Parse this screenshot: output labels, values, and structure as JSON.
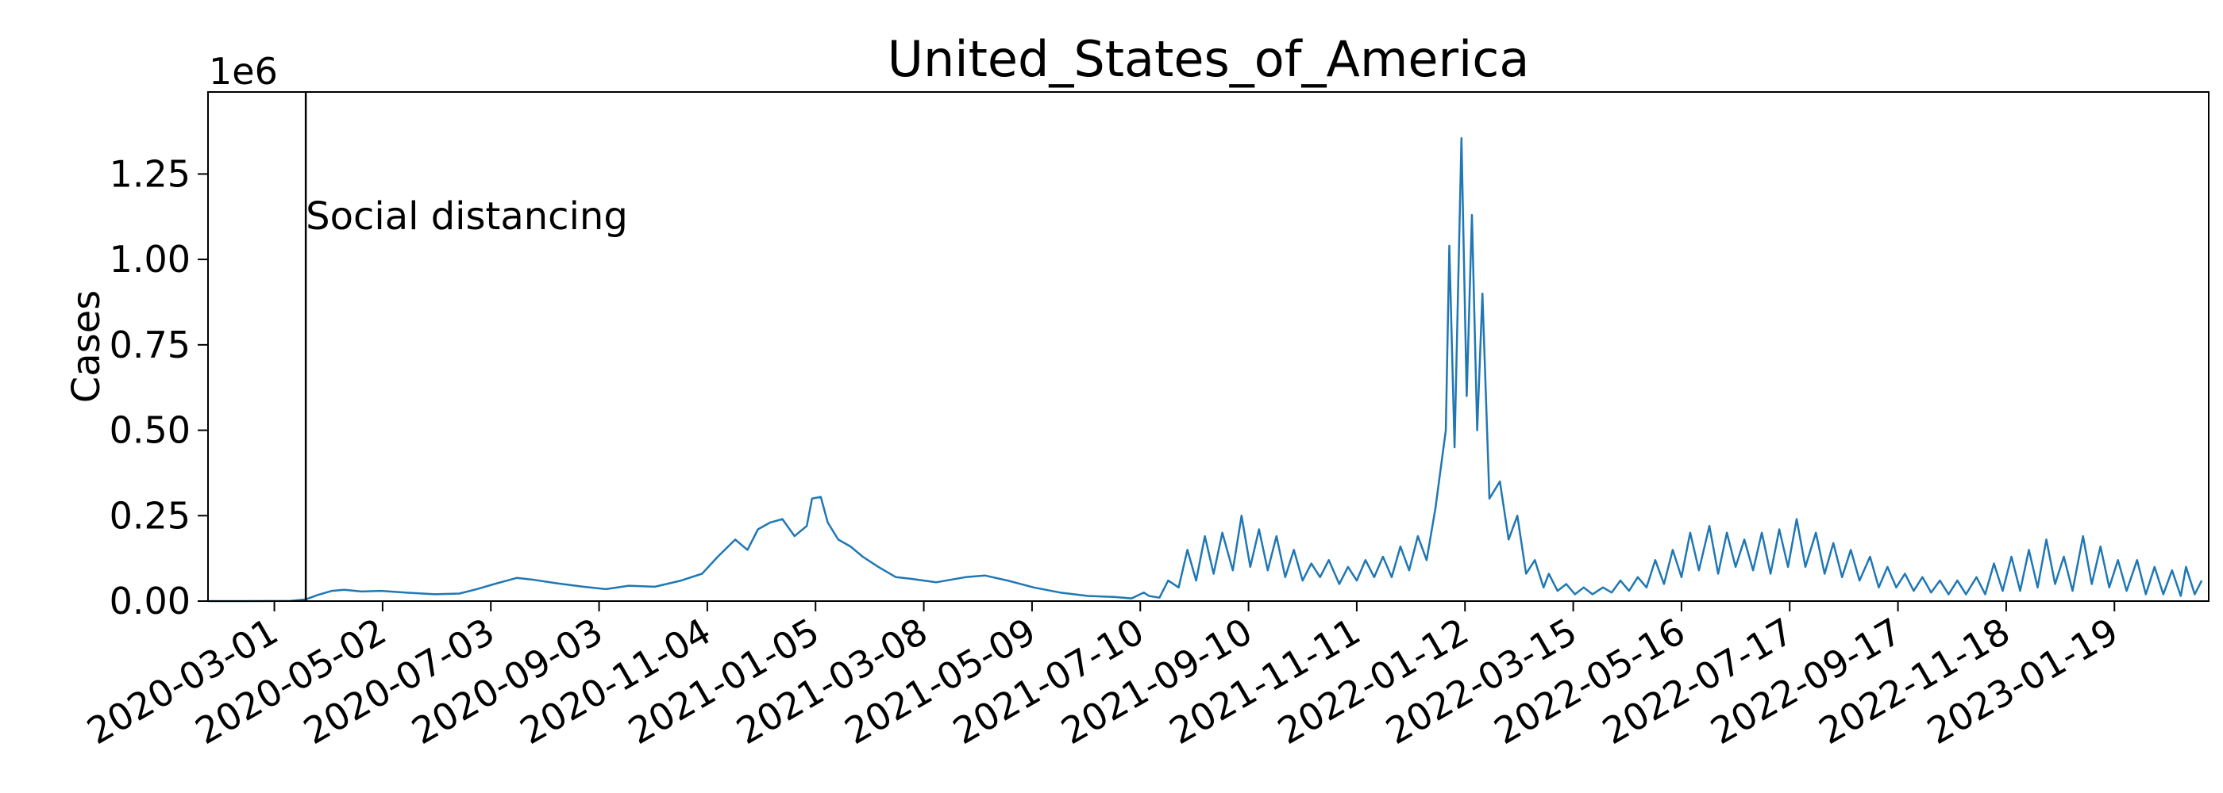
{
  "chart_data": {
    "type": "line",
    "title": "United_States_of_America",
    "y_label": "Cases",
    "y_offset_label": "1e6",
    "color": "#1f77b4",
    "annotation": {
      "x": "2020-03-19",
      "text": "Social distancing"
    },
    "xlim": [
      "2020-01-23",
      "2023-03-14"
    ],
    "xticks": [
      "2020-03-01",
      "2020-05-02",
      "2020-07-03",
      "2020-09-03",
      "2020-11-04",
      "2021-01-05",
      "2021-03-08",
      "2021-05-09",
      "2021-07-10",
      "2021-09-10",
      "2021-11-11",
      "2022-01-12",
      "2022-03-15",
      "2022-05-16",
      "2022-07-17",
      "2022-09-17",
      "2022-11-18",
      "2023-01-19"
    ],
    "ylim": [
      0,
      1490000
    ],
    "yticks": [
      {
        "value": 0,
        "label": "0.00"
      },
      {
        "value": 250000,
        "label": "0.25"
      },
      {
        "value": 500000,
        "label": "0.50"
      },
      {
        "value": 750000,
        "label": "0.75"
      },
      {
        "value": 1000000,
        "label": "1.00"
      },
      {
        "value": 1250000,
        "label": "1.25"
      }
    ],
    "x": [
      "2020-01-23",
      "2020-02-15",
      "2020-03-10",
      "2020-03-19",
      "2020-03-26",
      "2020-04-03",
      "2020-04-10",
      "2020-04-20",
      "2020-05-01",
      "2020-05-15",
      "2020-06-01",
      "2020-06-15",
      "2020-06-25",
      "2020-07-05",
      "2020-07-18",
      "2020-07-28",
      "2020-08-10",
      "2020-08-25",
      "2020-09-07",
      "2020-09-20",
      "2020-10-05",
      "2020-10-20",
      "2020-11-01",
      "2020-11-10",
      "2020-11-20",
      "2020-11-27",
      "2020-12-03",
      "2020-12-10",
      "2020-12-17",
      "2020-12-24",
      "2020-12-31",
      "2021-01-03",
      "2021-01-08",
      "2021-01-12",
      "2021-01-18",
      "2021-01-25",
      "2021-02-01",
      "2021-02-10",
      "2021-02-20",
      "2021-03-01",
      "2021-03-15",
      "2021-04-01",
      "2021-04-12",
      "2021-04-25",
      "2021-05-10",
      "2021-05-25",
      "2021-06-10",
      "2021-06-25",
      "2021-07-05",
      "2021-07-12",
      "2021-07-15",
      "2021-07-21",
      "2021-07-26",
      "2021-08-01",
      "2021-08-06",
      "2021-08-11",
      "2021-08-16",
      "2021-08-21",
      "2021-08-26",
      "2021-09-01",
      "2021-09-06",
      "2021-09-11",
      "2021-09-16",
      "2021-09-21",
      "2021-09-26",
      "2021-10-01",
      "2021-10-06",
      "2021-10-11",
      "2021-10-16",
      "2021-10-21",
      "2021-10-26",
      "2021-11-01",
      "2021-11-06",
      "2021-11-11",
      "2021-11-16",
      "2021-11-21",
      "2021-11-26",
      "2021-12-01",
      "2021-12-06",
      "2021-12-11",
      "2021-12-16",
      "2021-12-21",
      "2021-12-26",
      "2022-01-01",
      "2022-01-03",
      "2022-01-06",
      "2022-01-10",
      "2022-01-13",
      "2022-01-16",
      "2022-01-19",
      "2022-01-22",
      "2022-01-26",
      "2022-02-01",
      "2022-02-06",
      "2022-02-11",
      "2022-02-16",
      "2022-02-21",
      "2022-02-26",
      "2022-03-01",
      "2022-03-06",
      "2022-03-11",
      "2022-03-16",
      "2022-03-21",
      "2022-03-26",
      "2022-04-01",
      "2022-04-06",
      "2022-04-11",
      "2022-04-16",
      "2022-04-21",
      "2022-04-26",
      "2022-05-01",
      "2022-05-06",
      "2022-05-11",
      "2022-05-16",
      "2022-05-21",
      "2022-05-26",
      "2022-06-01",
      "2022-06-06",
      "2022-06-11",
      "2022-06-16",
      "2022-06-21",
      "2022-06-26",
      "2022-07-01",
      "2022-07-06",
      "2022-07-11",
      "2022-07-16",
      "2022-07-21",
      "2022-07-26",
      "2022-08-01",
      "2022-08-06",
      "2022-08-11",
      "2022-08-16",
      "2022-08-21",
      "2022-08-26",
      "2022-09-01",
      "2022-09-06",
      "2022-09-11",
      "2022-09-16",
      "2022-09-21",
      "2022-09-26",
      "2022-10-01",
      "2022-10-06",
      "2022-10-11",
      "2022-10-16",
      "2022-10-21",
      "2022-10-26",
      "2022-11-01",
      "2022-11-06",
      "2022-11-11",
      "2022-11-16",
      "2022-11-21",
      "2022-11-26",
      "2022-12-01",
      "2022-12-06",
      "2022-12-11",
      "2022-12-16",
      "2022-12-21",
      "2022-12-26",
      "2023-01-01",
      "2023-01-06",
      "2023-01-11",
      "2023-01-16",
      "2023-01-21",
      "2023-01-26",
      "2023-02-01",
      "2023-02-06",
      "2023-02-11",
      "2023-02-16",
      "2023-02-21",
      "2023-02-26",
      "2023-03-01",
      "2023-03-06",
      "2023-03-10"
    ],
    "values": [
      0,
      0,
      500,
      5000,
      18000,
      30000,
      33000,
      28000,
      30000,
      25000,
      20000,
      22000,
      35000,
      50000,
      68000,
      62000,
      52000,
      42000,
      35000,
      45000,
      42000,
      60000,
      80000,
      130000,
      180000,
      150000,
      210000,
      230000,
      240000,
      190000,
      220000,
      300000,
      305000,
      230000,
      180000,
      160000,
      130000,
      100000,
      70000,
      65000,
      55000,
      70000,
      75000,
      60000,
      40000,
      25000,
      15000,
      12000,
      8000,
      25000,
      15000,
      10000,
      60000,
      40000,
      150000,
      60000,
      190000,
      80000,
      200000,
      90000,
      250000,
      100000,
      210000,
      90000,
      190000,
      70000,
      150000,
      60000,
      110000,
      70000,
      120000,
      50000,
      100000,
      60000,
      120000,
      70000,
      130000,
      70000,
      160000,
      90000,
      190000,
      120000,
      270000,
      500000,
      1040000,
      450000,
      1355000,
      600000,
      1130000,
      500000,
      900000,
      300000,
      350000,
      180000,
      250000,
      80000,
      120000,
      40000,
      80000,
      30000,
      50000,
      20000,
      40000,
      20000,
      40000,
      25000,
      60000,
      30000,
      70000,
      40000,
      120000,
      50000,
      150000,
      70000,
      200000,
      90000,
      220000,
      80000,
      200000,
      100000,
      180000,
      90000,
      200000,
      80000,
      210000,
      100000,
      240000,
      100000,
      200000,
      80000,
      170000,
      70000,
      150000,
      60000,
      130000,
      40000,
      100000,
      40000,
      80000,
      30000,
      70000,
      25000,
      60000,
      20000,
      60000,
      20000,
      70000,
      20000,
      110000,
      30000,
      130000,
      30000,
      150000,
      40000,
      180000,
      50000,
      130000,
      30000,
      190000,
      50000,
      160000,
      40000,
      120000,
      30000,
      120000,
      20000,
      100000,
      20000,
      90000,
      15000,
      100000,
      20000,
      60000
    ]
  }
}
